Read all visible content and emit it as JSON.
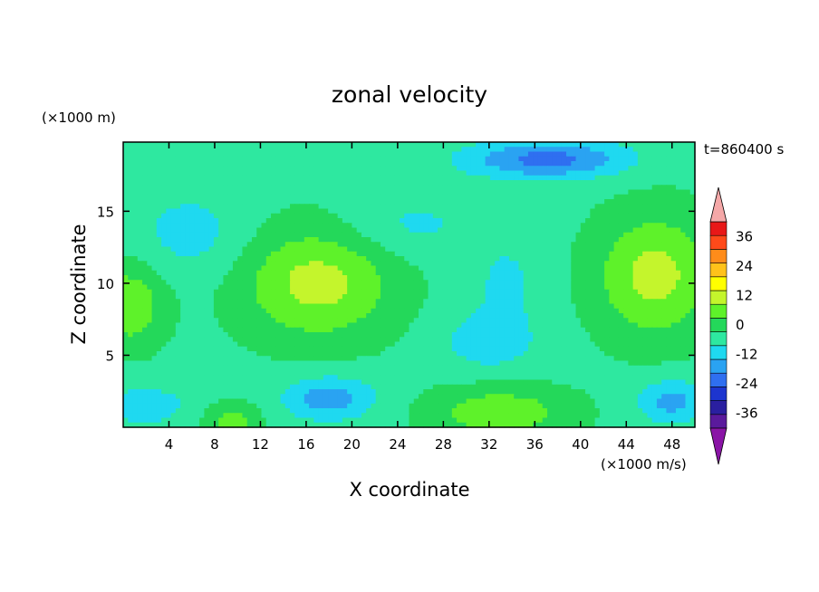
{
  "chart_data": {
    "type": "heatmap",
    "title": "zonal velocity",
    "xlabel": "X coordinate",
    "ylabel": "Z coordinate",
    "x_unit_label": "(×1000 m/s)",
    "y_unit_label": "(×1000 m)",
    "time_label": "t=860400 s",
    "xlim": [
      0,
      50
    ],
    "ylim": [
      0,
      19.8
    ],
    "x_ticks": [
      4,
      8,
      12,
      16,
      20,
      24,
      28,
      32,
      36,
      40,
      44,
      48
    ],
    "y_ticks": [
      5,
      10,
      15
    ],
    "colorbar": {
      "tick_labels": [
        "36",
        "24",
        "12",
        "0",
        "-12",
        "-24",
        "-36"
      ],
      "tick_values": [
        36,
        24,
        12,
        0,
        -12,
        -24,
        -36
      ],
      "levels": [
        -42,
        -36,
        -30,
        -24,
        -18,
        -12,
        -6,
        0,
        6,
        12,
        18,
        24,
        30,
        36,
        42
      ],
      "colors": [
        "#5a1a9c",
        "#2a1fa0",
        "#1d35cf",
        "#2f6ff0",
        "#2aa3f2",
        "#1fd9f0",
        "#2ee8a0",
        "#24d85a",
        "#5ef22a",
        "#c4f52c",
        "#ffff00",
        "#ffc21a",
        "#ff8c1a",
        "#ff4a1a",
        "#e81818"
      ],
      "under_color": "#8a14a6",
      "over_color": "#f5a8a8"
    },
    "features": [
      {
        "x": 17,
        "z": 10,
        "sx": 6.5,
        "sz": 3.8,
        "amp": 16
      },
      {
        "x": 46.5,
        "z": 10.5,
        "sx": 5,
        "sz": 4.2,
        "amp": 16
      },
      {
        "x": 0.5,
        "z": 8.5,
        "sx": 3,
        "sz": 2.8,
        "amp": 13
      },
      {
        "x": 33,
        "z": 1,
        "sx": 6,
        "sz": 1.8,
        "amp": 12
      },
      {
        "x": 9.5,
        "z": 0.3,
        "sx": 2.5,
        "sz": 1.3,
        "amp": 10
      },
      {
        "x": 37,
        "z": 18.6,
        "sx": 7,
        "sz": 1.3,
        "amp": -19
      },
      {
        "x": 18,
        "z": 2,
        "sx": 4,
        "sz": 1.5,
        "amp": -14
      },
      {
        "x": 48,
        "z": 1.8,
        "sx": 3,
        "sz": 1.5,
        "amp": -13
      },
      {
        "x": 2,
        "z": 1.5,
        "sx": 4,
        "sz": 1.5,
        "amp": -8
      },
      {
        "x": 32,
        "z": 6,
        "sx": 4,
        "sz": 2,
        "amp": -9
      },
      {
        "x": 6,
        "z": 13.5,
        "sx": 5,
        "sz": 3,
        "amp": -7
      },
      {
        "x": 25,
        "z": 14,
        "sx": 6,
        "sz": 2.2,
        "amp": -6
      },
      {
        "x": 33.5,
        "z": 10,
        "sx": 3,
        "sz": 3,
        "amp": -6
      }
    ]
  }
}
